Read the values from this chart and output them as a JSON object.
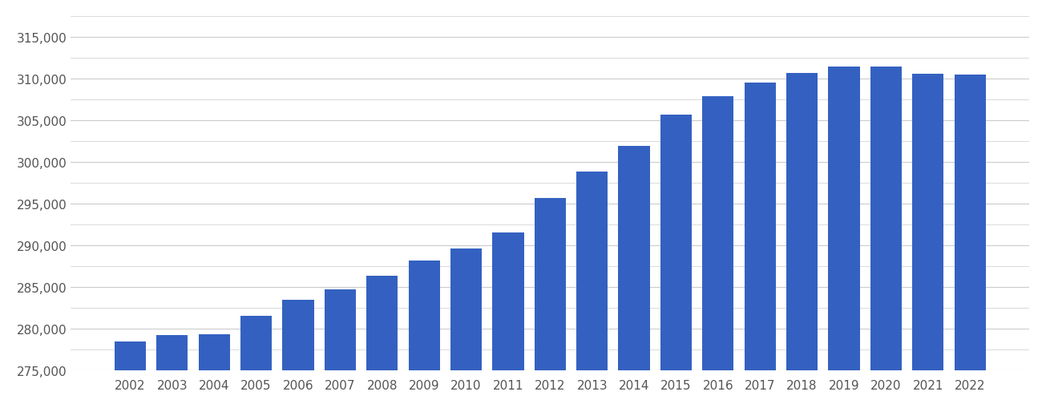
{
  "years": [
    2002,
    2003,
    2004,
    2005,
    2006,
    2007,
    2008,
    2009,
    2010,
    2011,
    2012,
    2013,
    2014,
    2015,
    2016,
    2017,
    2018,
    2019,
    2020,
    2021,
    2022
  ],
  "values": [
    278500,
    279200,
    279300,
    281500,
    283500,
    284700,
    286300,
    288200,
    289600,
    291500,
    295700,
    298800,
    301900,
    305700,
    307900,
    309500,
    310700,
    311400,
    311400,
    310600,
    310500
  ],
  "bar_color": "#3461c1",
  "background_color": "#ffffff",
  "grid_color": "#cccccc",
  "ylim_min": 275000,
  "ylim_max": 317500,
  "ytick_major_step": 5000,
  "ytick_minor_step": 2500,
  "ylabel_fontsize": 11,
  "xlabel_fontsize": 11,
  "tick_color": "#999999"
}
